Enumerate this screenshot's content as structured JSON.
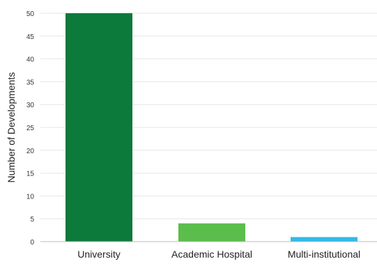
{
  "chart_data": {
    "type": "bar",
    "title": "",
    "xlabel": "",
    "ylabel": "Number of Developments",
    "categories": [
      "University",
      "Academic Hospital",
      "Multi-institutional"
    ],
    "values": [
      50,
      4,
      1
    ],
    "colors": [
      "#0b7a3b",
      "#5bbd4b",
      "#33b9e8"
    ],
    "ylim": [
      0,
      50
    ],
    "yticks": [
      0,
      5,
      10,
      15,
      20,
      25,
      30,
      35,
      40,
      45,
      50
    ],
    "grid": true,
    "legend": "none"
  }
}
